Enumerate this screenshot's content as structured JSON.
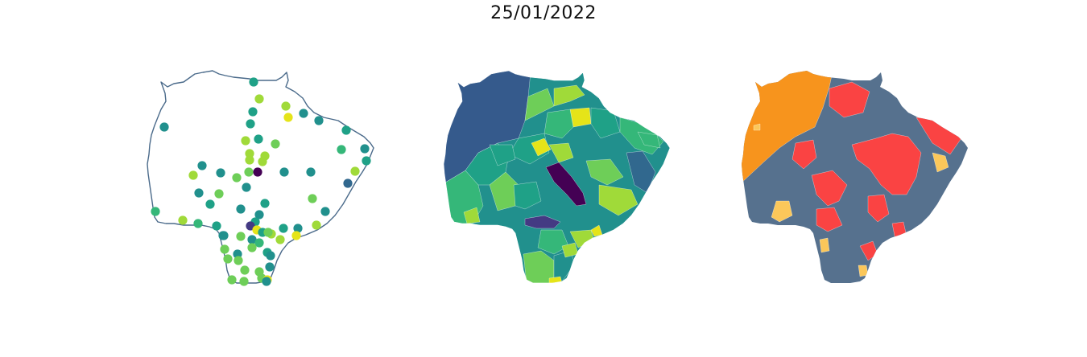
{
  "figure": {
    "title": "25/01/2022"
  },
  "colors": {
    "state_outline": "#4a6a8a",
    "viridis_dark": "#440154",
    "viridis_purple": "#443a83",
    "viridis_blue": "#31688e",
    "viridis_navy": "#355a8c",
    "viridis_teal": "#21908d",
    "viridis_seagreen": "#1fa187",
    "viridis_green": "#35b779",
    "viridis_lightgreen": "#6ece58",
    "viridis_lime": "#a0da39",
    "viridis_yellow": "#e5e419",
    "cat_slate": "#56718e",
    "cat_orange": "#f7941d",
    "cat_red": "#fa4343",
    "cat_yellow": "#fbc75a"
  },
  "panels": [
    {
      "name": "stations-point-map",
      "type": "point-map"
    },
    {
      "name": "municipal-choropleth-map",
      "type": "choropleth"
    },
    {
      "name": "categorical-risk-map",
      "type": "categorical"
    }
  ]
}
